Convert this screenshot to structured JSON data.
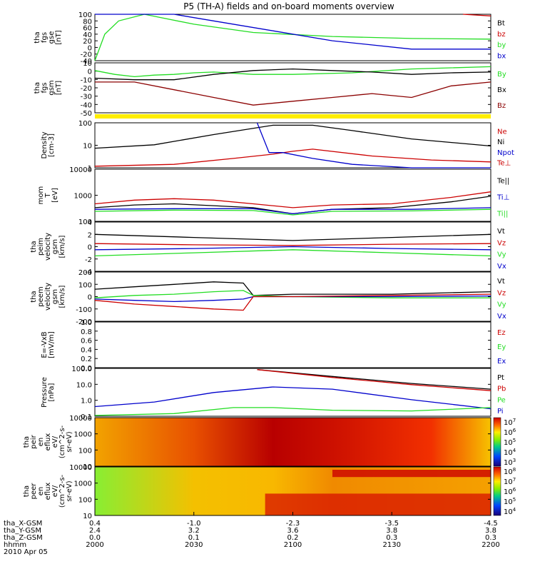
{
  "title": "P5 (TH-A) fields and on-board moments overview",
  "colors": {
    "black": "#000000",
    "red": "#cc0000",
    "darkred": "#8b0000",
    "green": "#22dd22",
    "blue": "#0000cc",
    "yellow": "#ffee00"
  },
  "chart_data": [
    {
      "type": "line",
      "id": "fgs_gse",
      "ylabel": [
        "tha",
        "fgs",
        "gse",
        "[nT]"
      ],
      "ylim": [
        -40,
        100
      ],
      "yticks": [
        "100",
        "80",
        "60",
        "40",
        "20",
        "0",
        "-20",
        "-40"
      ],
      "legend": [
        {
          "name": "Bt",
          "color": "#000000"
        },
        {
          "name": "bz",
          "color": "#cc0000"
        },
        {
          "name": "by",
          "color": "#22dd22"
        },
        {
          "name": "bx",
          "color": "#0000cc"
        }
      ],
      "series": [
        {
          "name": "by",
          "color": "#22dd22",
          "x": [
            0,
            5,
            12,
            25,
            50,
            80,
            120,
            160,
            200
          ],
          "y": [
            -40,
            40,
            80,
            100,
            70,
            45,
            33,
            27,
            25
          ]
        },
        {
          "name": "bx",
          "color": "#0000cc",
          "x": [
            0,
            40,
            60,
            90,
            120,
            160,
            200
          ],
          "y": [
            100,
            100,
            80,
            50,
            20,
            -5,
            -5
          ]
        },
        {
          "name": "bz",
          "color": "#cc0000",
          "x": [
            186,
            200
          ],
          "y": [
            100,
            95
          ]
        }
      ]
    },
    {
      "type": "line",
      "id": "fgs_gsm",
      "ylabel": [
        "tha",
        "fgs",
        "gsm",
        "[nT]"
      ],
      "ylim": [
        -55,
        10
      ],
      "yticks": [
        "10",
        "0",
        "-10",
        "-20",
        "-30",
        "-40",
        "-50"
      ],
      "legend": [
        {
          "name": "By",
          "color": "#22dd22"
        },
        {
          "name": "Bx",
          "color": "#000000"
        },
        {
          "name": "Bz",
          "color": "#8b0000"
        }
      ],
      "series": [
        {
          "name": "By",
          "color": "#22dd22",
          "x": [
            0,
            10,
            20,
            30,
            40,
            50,
            60,
            80,
            100,
            130,
            160,
            200
          ],
          "y": [
            0,
            -5,
            -8,
            -6,
            -5,
            -3,
            -2,
            -5,
            -5,
            -3,
            2,
            5
          ]
        },
        {
          "name": "Bx",
          "color": "#000000",
          "x": [
            0,
            20,
            40,
            60,
            80,
            100,
            120,
            140,
            160,
            180,
            200
          ],
          "y": [
            -10,
            -12,
            -12,
            -5,
            0,
            2,
            0,
            -2,
            -5,
            -3,
            -2
          ]
        },
        {
          "name": "Bz",
          "color": "#8b0000",
          "x": [
            0,
            20,
            40,
            60,
            80,
            100,
            120,
            140,
            160,
            180,
            200
          ],
          "y": [
            -15,
            -15,
            -25,
            -35,
            -45,
            -40,
            -35,
            -30,
            -35,
            -20,
            -15
          ]
        }
      ]
    },
    {
      "type": "line",
      "id": "density",
      "scale": "log",
      "ylabel": [
        "Density",
        "[cm-3]"
      ],
      "ylim": [
        1,
        200
      ],
      "yticks": [
        "100",
        "10",
        "1"
      ],
      "legend": [
        {
          "name": "Ne",
          "color": "#cc0000"
        },
        {
          "name": "Ni",
          "color": "#000000"
        },
        {
          "name": "Npot",
          "color": "#0000cc"
        },
        {
          "name": "Te⊥",
          "color": "#cc0000"
        }
      ],
      "series": [
        {
          "name": "Ni",
          "color": "#000000",
          "x": [
            0,
            30,
            60,
            90,
            110,
            130,
            160,
            200
          ],
          "y": [
            10,
            15,
            50,
            150,
            150,
            80,
            30,
            13
          ]
        },
        {
          "name": "Ne",
          "color": "#cc0000",
          "x": [
            0,
            40,
            70,
            90,
            100,
            110,
            140,
            170,
            200
          ],
          "y": [
            1.2,
            1.5,
            3,
            5,
            7,
            9,
            4,
            2.5,
            2
          ]
        },
        {
          "name": "Npot",
          "color": "#0000cc",
          "x": [
            82,
            88,
            95,
            110,
            130,
            160,
            200
          ],
          "y": [
            200,
            6,
            6,
            3,
            1.5,
            1,
            1
          ]
        }
      ]
    },
    {
      "type": "line",
      "id": "mom_temp",
      "scale": "log",
      "ylabel": [
        "mom",
        "T",
        "[eV]"
      ],
      "ylim": [
        100,
        12000
      ],
      "yticks": [
        "10000",
        "1000",
        "100"
      ],
      "legend": [
        {
          "name": "Te||",
          "color": "#000000"
        },
        {
          "name": "Ti⊥",
          "color": "#0000cc"
        },
        {
          "name": "Ti||",
          "color": "#22dd22"
        }
      ],
      "series": [
        {
          "name": "Te⊥",
          "color": "#cc0000",
          "x": [
            0,
            20,
            40,
            60,
            80,
            100,
            120,
            150,
            180,
            200
          ],
          "y": [
            500,
            700,
            800,
            700,
            500,
            350,
            450,
            500,
            900,
            1500
          ]
        },
        {
          "name": "Te||",
          "color": "#000000",
          "x": [
            0,
            20,
            40,
            60,
            80,
            100,
            120,
            150,
            180,
            200
          ],
          "y": [
            350,
            450,
            500,
            420,
            350,
            200,
            300,
            350,
            600,
            1000
          ]
        },
        {
          "name": "Ti⊥",
          "color": "#0000cc",
          "x": [
            0,
            40,
            80,
            100,
            120,
            160,
            200
          ],
          "y": [
            300,
            320,
            320,
            200,
            300,
            300,
            350
          ]
        },
        {
          "name": "Ti||",
          "color": "#22dd22",
          "x": [
            0,
            40,
            80,
            100,
            120,
            160,
            200
          ],
          "y": [
            250,
            280,
            270,
            180,
            250,
            260,
            300
          ]
        }
      ]
    },
    {
      "type": "line",
      "id": "peim_velocity",
      "ylabel": [
        "tha",
        "peim",
        "velocity",
        "gsm",
        "[km/s]"
      ],
      "ylim": [
        -4,
        4
      ],
      "yticks": [
        "4",
        "2",
        "0",
        "-2",
        "-4"
      ],
      "legend": [
        {
          "name": "Vt",
          "color": "#000000"
        },
        {
          "name": "Vz",
          "color": "#cc0000"
        },
        {
          "name": "Vy",
          "color": "#22dd22"
        },
        {
          "name": "Vx",
          "color": "#0000cc"
        }
      ],
      "series": [
        {
          "name": "Vt",
          "color": "#000000",
          "x": [
            0,
            50,
            100,
            150,
            200
          ],
          "y": [
            2,
            1.5,
            1,
            1.5,
            2
          ]
        },
        {
          "name": "Vz",
          "color": "#cc0000",
          "x": [
            0,
            50,
            100,
            150,
            200
          ],
          "y": [
            0.5,
            0.3,
            0.2,
            0.4,
            0.5
          ]
        },
        {
          "name": "Vy",
          "color": "#22dd22",
          "x": [
            0,
            50,
            100,
            150,
            200
          ],
          "y": [
            -1.5,
            -1,
            -0.5,
            -1,
            -1.5
          ]
        },
        {
          "name": "Vx",
          "color": "#0000cc",
          "x": [
            0,
            50,
            100,
            150,
            200
          ],
          "y": [
            -0.5,
            -0.3,
            0,
            -0.3,
            -0.5
          ]
        }
      ]
    },
    {
      "type": "line",
      "id": "peem_velocity",
      "ylabel": [
        "tha",
        "peem",
        "velocity",
        "gsm",
        "[km/s]"
      ],
      "ylim": [
        -200,
        200
      ],
      "yticks": [
        "200",
        "100",
        "0",
        "-100",
        "-200"
      ],
      "legend": [
        {
          "name": "Vt",
          "color": "#000000"
        },
        {
          "name": "Vz",
          "color": "#cc0000"
        },
        {
          "name": "Vy",
          "color": "#22dd22"
        },
        {
          "name": "Vx",
          "color": "#0000cc"
        }
      ],
      "series": [
        {
          "name": "Vt",
          "color": "#000000",
          "x": [
            0,
            20,
            40,
            60,
            75,
            80,
            100,
            150,
            200
          ],
          "y": [
            60,
            80,
            100,
            120,
            110,
            10,
            20,
            20,
            40
          ]
        },
        {
          "name": "Vy",
          "color": "#22dd22",
          "x": [
            0,
            20,
            40,
            60,
            75,
            80,
            100,
            150,
            200
          ],
          "y": [
            -10,
            10,
            20,
            40,
            50,
            10,
            0,
            -10,
            -10
          ]
        },
        {
          "name": "Vx",
          "color": "#0000cc",
          "x": [
            0,
            20,
            40,
            60,
            75,
            80,
            100,
            150,
            200
          ],
          "y": [
            -20,
            -30,
            -40,
            -30,
            -20,
            0,
            0,
            0,
            5
          ]
        },
        {
          "name": "Vz",
          "color": "#cc0000",
          "x": [
            0,
            20,
            40,
            60,
            75,
            80,
            100,
            150,
            200
          ],
          "y": [
            -30,
            -60,
            -80,
            -100,
            -110,
            0,
            0,
            10,
            20
          ]
        }
      ]
    },
    {
      "type": "line",
      "id": "efield",
      "ylabel": [
        "E=-VxB",
        "[mV/m]"
      ],
      "ylim": [
        0,
        1
      ],
      "yticks": [
        "1.0",
        "0.8",
        "0.6",
        "0.4",
        "0.2",
        "0.0"
      ],
      "legend": [
        {
          "name": "Ez",
          "color": "#cc0000"
        },
        {
          "name": "Ey",
          "color": "#22dd22"
        },
        {
          "name": "Ex",
          "color": "#0000cc"
        }
      ],
      "series": []
    },
    {
      "type": "line",
      "id": "pressure",
      "scale": "log",
      "ylabel": [
        "Pressure",
        "[nPa]"
      ],
      "ylim": [
        0.08,
        120
      ],
      "yticks": [
        "100.0",
        "10.0",
        "1.0",
        "0.1"
      ],
      "legend": [
        {
          "name": "Pt",
          "color": "#000000"
        },
        {
          "name": "Pb",
          "color": "#cc0000"
        },
        {
          "name": "Pe",
          "color": "#22dd22"
        },
        {
          "name": "Pi",
          "color": "#0000cc"
        }
      ],
      "series": [
        {
          "name": "Pt",
          "color": "#000000",
          "x": [
            82,
            120,
            160,
            200
          ],
          "y": [
            100,
            35,
            12,
            5
          ]
        },
        {
          "name": "Pb",
          "color": "#cc0000",
          "x": [
            82,
            120,
            160,
            200
          ],
          "y": [
            100,
            30,
            10,
            4
          ]
        },
        {
          "name": "Pi",
          "color": "#0000cc",
          "x": [
            0,
            30,
            60,
            90,
            120,
            160,
            200
          ],
          "y": [
            0.35,
            0.7,
            3,
            7,
            5,
            1,
            0.25
          ]
        },
        {
          "name": "Pe",
          "color": "#22dd22",
          "x": [
            0,
            40,
            70,
            90,
            120,
            160,
            200
          ],
          "y": [
            0.09,
            0.12,
            0.3,
            0.3,
            0.2,
            0.18,
            0.3
          ]
        }
      ]
    },
    {
      "type": "heatmap",
      "id": "peir_spec",
      "ylabel": [
        "tha",
        "peir",
        "en",
        "eflux",
        "eV/",
        "(cm^2-s-",
        "sr-eV)"
      ],
      "ylim": [
        6,
        30000
      ],
      "yticks": [
        "10000",
        "1000",
        "100",
        "10"
      ],
      "colorbar": [
        "10^7",
        "10^6",
        "10^5",
        "10^4",
        "10^3"
      ]
    },
    {
      "type": "heatmap",
      "id": "peer_spec",
      "ylabel": [
        "tha",
        "peer",
        "en",
        "eflux",
        "eV/",
        "(cm^2-s-",
        "sr-eV)"
      ],
      "ylim": [
        6,
        30000
      ],
      "yticks": [
        "10000",
        "1000",
        "100",
        "10"
      ],
      "colorbar": [
        "10^8",
        "10^7",
        "10^6",
        "10^5",
        "10^4"
      ]
    }
  ],
  "xaxis": {
    "rows": [
      {
        "label": "tha_X-GSM",
        "values": [
          "0.4",
          "-1.0",
          "-2.3",
          "-3.5",
          "-4.5"
        ]
      },
      {
        "label": "tha_Y-GSM",
        "values": [
          "2.4",
          "3.2",
          "3.6",
          "3.8",
          "3.8"
        ]
      },
      {
        "label": "tha_Z-GSM",
        "values": [
          "0.0",
          "0.1",
          "0.2",
          "0.3",
          "0.3"
        ]
      },
      {
        "label": "hhmm",
        "values": [
          "2000",
          "2030",
          "2100",
          "2130",
          "2200"
        ]
      }
    ],
    "date": "2010 Apr 05"
  }
}
